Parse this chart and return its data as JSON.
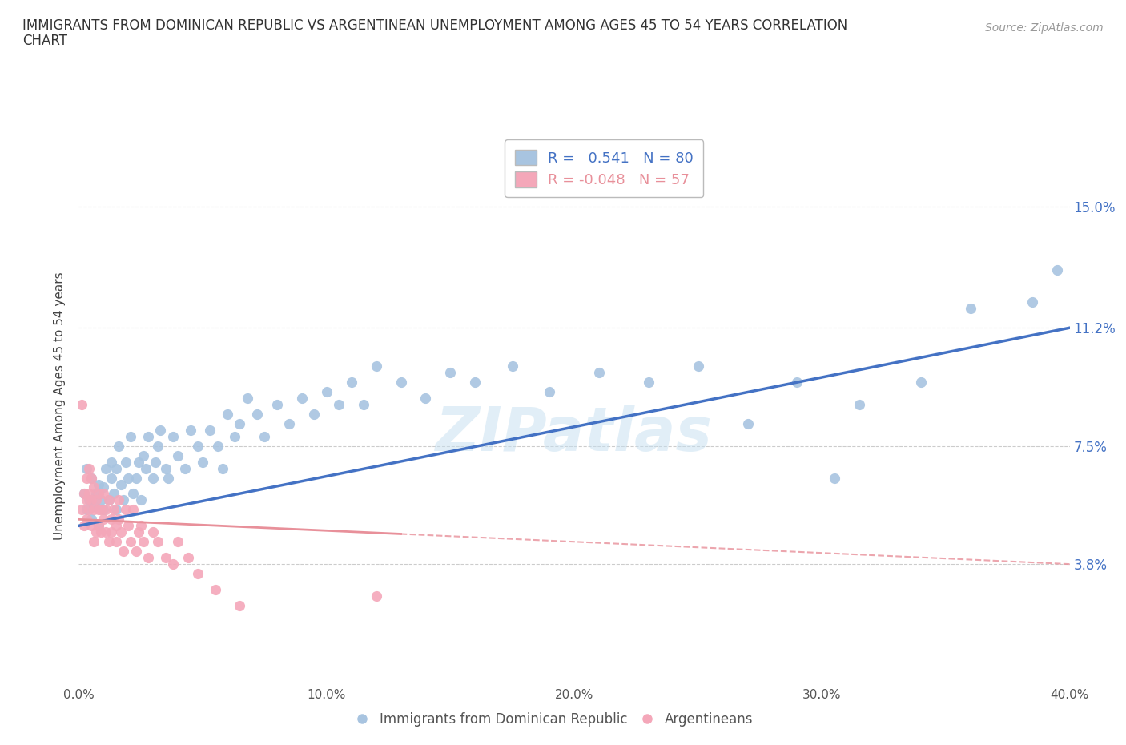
{
  "title_line1": "IMMIGRANTS FROM DOMINICAN REPUBLIC VS ARGENTINEAN UNEMPLOYMENT AMONG AGES 45 TO 54 YEARS CORRELATION",
  "title_line2": "CHART",
  "source_text": "Source: ZipAtlas.com",
  "ylabel": "Unemployment Among Ages 45 to 54 years",
  "xlim": [
    0.0,
    0.4
  ],
  "ylim": [
    0.0,
    0.175
  ],
  "yticks": [
    0.038,
    0.075,
    0.112,
    0.15
  ],
  "ytick_labels": [
    "3.8%",
    "7.5%",
    "11.2%",
    "15.0%"
  ],
  "xticks": [
    0.0,
    0.1,
    0.2,
    0.3,
    0.4
  ],
  "xtick_labels": [
    "0.0%",
    "10.0%",
    "20.0%",
    "30.0%",
    "40.0%"
  ],
  "blue_r": 0.541,
  "blue_n": 80,
  "pink_r": -0.048,
  "pink_n": 57,
  "blue_color": "#a8c4e0",
  "pink_color": "#f4a7b9",
  "blue_line_color": "#4472C4",
  "pink_line_color": "#E8909A",
  "grid_color": "#cccccc",
  "blue_line_x0": 0.0,
  "blue_line_y0": 0.05,
  "blue_line_x1": 0.4,
  "blue_line_y1": 0.112,
  "pink_line_x0": 0.0,
  "pink_line_y0": 0.052,
  "pink_line_x1": 0.4,
  "pink_line_y1": 0.038,
  "blue_scatter_x": [
    0.002,
    0.003,
    0.003,
    0.004,
    0.005,
    0.005,
    0.006,
    0.007,
    0.008,
    0.008,
    0.009,
    0.01,
    0.01,
    0.011,
    0.012,
    0.013,
    0.013,
    0.014,
    0.015,
    0.015,
    0.016,
    0.017,
    0.018,
    0.019,
    0.02,
    0.021,
    0.022,
    0.023,
    0.024,
    0.025,
    0.026,
    0.027,
    0.028,
    0.03,
    0.031,
    0.032,
    0.033,
    0.035,
    0.036,
    0.038,
    0.04,
    0.043,
    0.045,
    0.048,
    0.05,
    0.053,
    0.056,
    0.058,
    0.06,
    0.063,
    0.065,
    0.068,
    0.072,
    0.075,
    0.08,
    0.085,
    0.09,
    0.095,
    0.1,
    0.105,
    0.11,
    0.115,
    0.12,
    0.13,
    0.14,
    0.15,
    0.16,
    0.175,
    0.19,
    0.21,
    0.23,
    0.25,
    0.27,
    0.29,
    0.305,
    0.315,
    0.34,
    0.36,
    0.385,
    0.395
  ],
  "blue_scatter_y": [
    0.06,
    0.055,
    0.068,
    0.058,
    0.052,
    0.065,
    0.056,
    0.06,
    0.05,
    0.063,
    0.058,
    0.055,
    0.062,
    0.068,
    0.058,
    0.065,
    0.07,
    0.06,
    0.055,
    0.068,
    0.075,
    0.063,
    0.058,
    0.07,
    0.065,
    0.078,
    0.06,
    0.065,
    0.07,
    0.058,
    0.072,
    0.068,
    0.078,
    0.065,
    0.07,
    0.075,
    0.08,
    0.068,
    0.065,
    0.078,
    0.072,
    0.068,
    0.08,
    0.075,
    0.07,
    0.08,
    0.075,
    0.068,
    0.085,
    0.078,
    0.082,
    0.09,
    0.085,
    0.078,
    0.088,
    0.082,
    0.09,
    0.085,
    0.092,
    0.088,
    0.095,
    0.088,
    0.1,
    0.095,
    0.09,
    0.098,
    0.095,
    0.1,
    0.092,
    0.098,
    0.095,
    0.1,
    0.082,
    0.095,
    0.065,
    0.088,
    0.095,
    0.118,
    0.12,
    0.13
  ],
  "pink_scatter_x": [
    0.001,
    0.001,
    0.002,
    0.002,
    0.003,
    0.003,
    0.003,
    0.004,
    0.004,
    0.004,
    0.005,
    0.005,
    0.005,
    0.006,
    0.006,
    0.006,
    0.007,
    0.007,
    0.008,
    0.008,
    0.008,
    0.009,
    0.009,
    0.01,
    0.01,
    0.011,
    0.011,
    0.012,
    0.012,
    0.013,
    0.013,
    0.014,
    0.015,
    0.015,
    0.016,
    0.016,
    0.017,
    0.018,
    0.019,
    0.02,
    0.021,
    0.022,
    0.023,
    0.024,
    0.025,
    0.026,
    0.028,
    0.03,
    0.032,
    0.035,
    0.038,
    0.04,
    0.044,
    0.048,
    0.055,
    0.065,
    0.12
  ],
  "pink_scatter_y": [
    0.088,
    0.055,
    0.06,
    0.05,
    0.065,
    0.058,
    0.052,
    0.068,
    0.055,
    0.06,
    0.05,
    0.058,
    0.065,
    0.045,
    0.055,
    0.062,
    0.048,
    0.058,
    0.055,
    0.05,
    0.06,
    0.048,
    0.055,
    0.052,
    0.06,
    0.048,
    0.055,
    0.045,
    0.058,
    0.052,
    0.048,
    0.055,
    0.05,
    0.045,
    0.058,
    0.052,
    0.048,
    0.042,
    0.055,
    0.05,
    0.045,
    0.055,
    0.042,
    0.048,
    0.05,
    0.045,
    0.04,
    0.048,
    0.045,
    0.04,
    0.038,
    0.045,
    0.04,
    0.035,
    0.03,
    0.025,
    0.028
  ]
}
